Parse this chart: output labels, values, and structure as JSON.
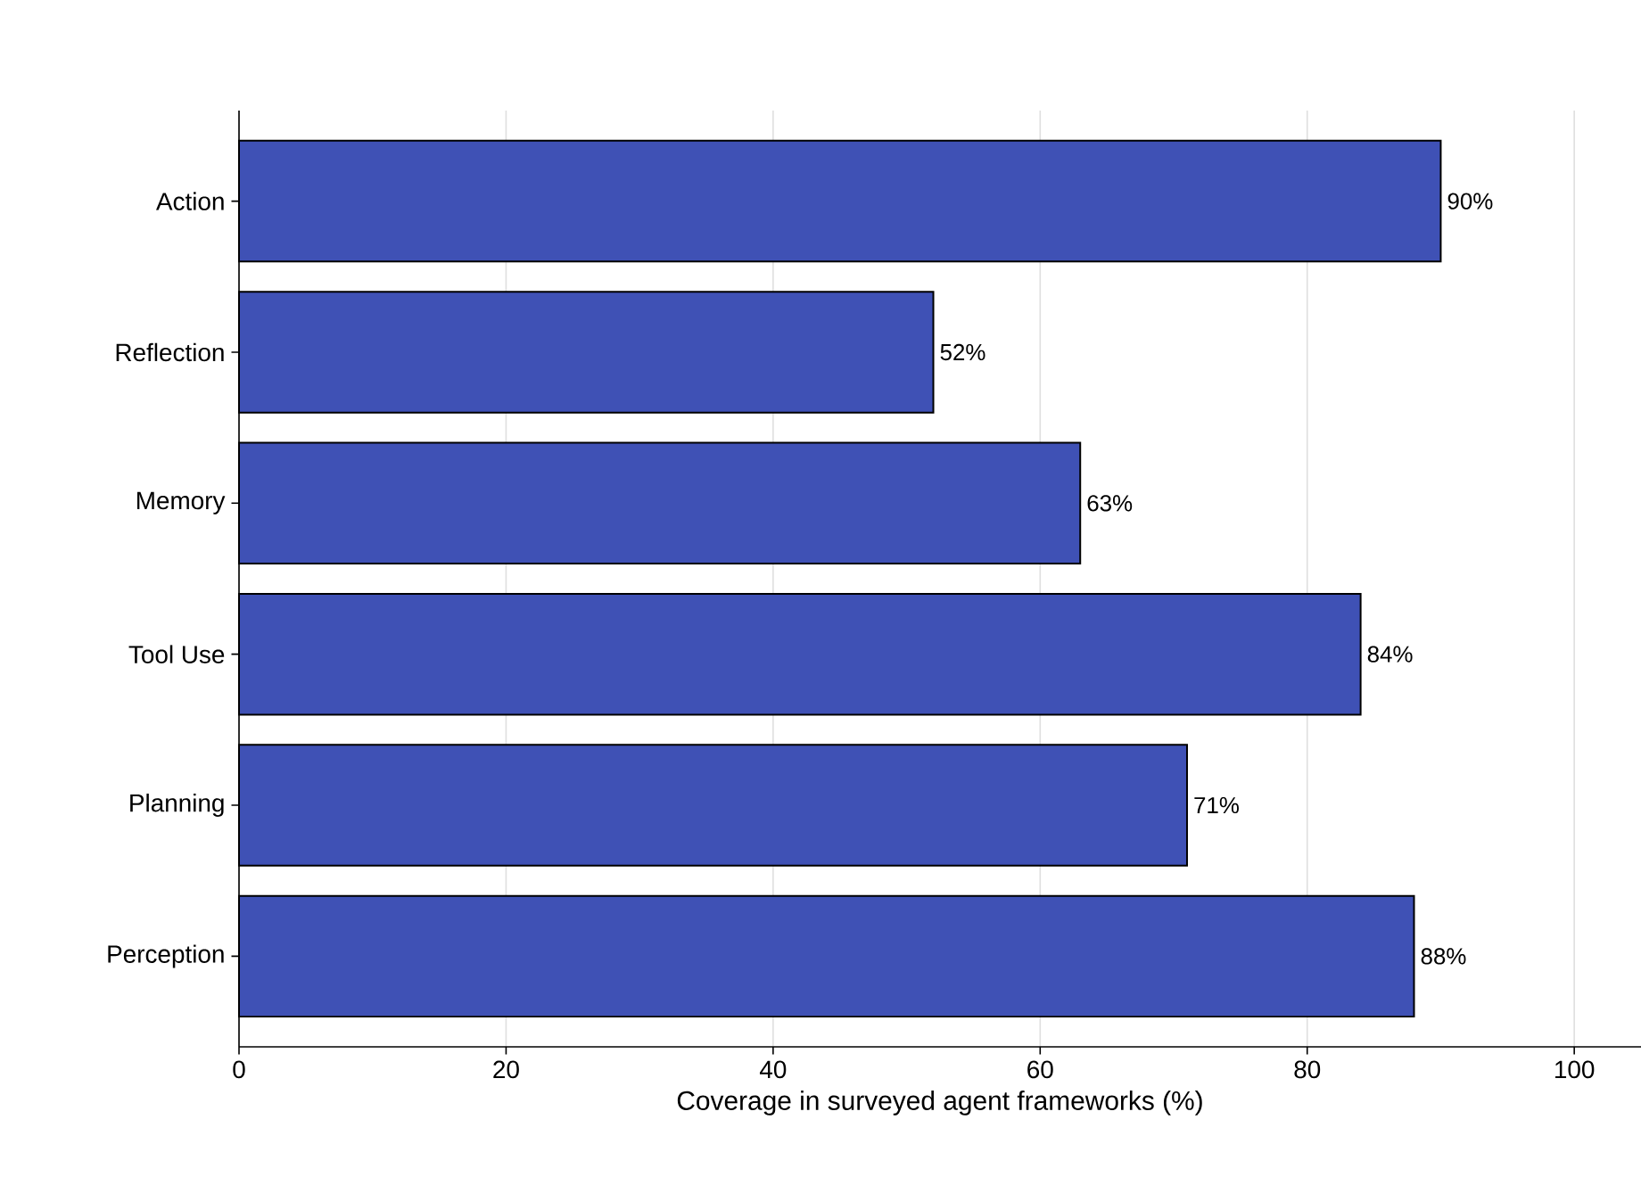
{
  "chart_data": {
    "type": "bar",
    "orientation": "horizontal",
    "xlabel": "Coverage in surveyed agent frameworks (%)",
    "categories": [
      "Action",
      "Reflection",
      "Memory",
      "Tool Use",
      "Planning",
      "Perception"
    ],
    "values": [
      90,
      52,
      63,
      84,
      71,
      88
    ],
    "value_labels": [
      "90%",
      "52%",
      "63%",
      "84%",
      "71%",
      "88%"
    ],
    "color": "#3f51b5",
    "xlim": [
      0,
      105
    ],
    "xticks": [
      0,
      20,
      40,
      60,
      80,
      100
    ],
    "grid": "x"
  }
}
